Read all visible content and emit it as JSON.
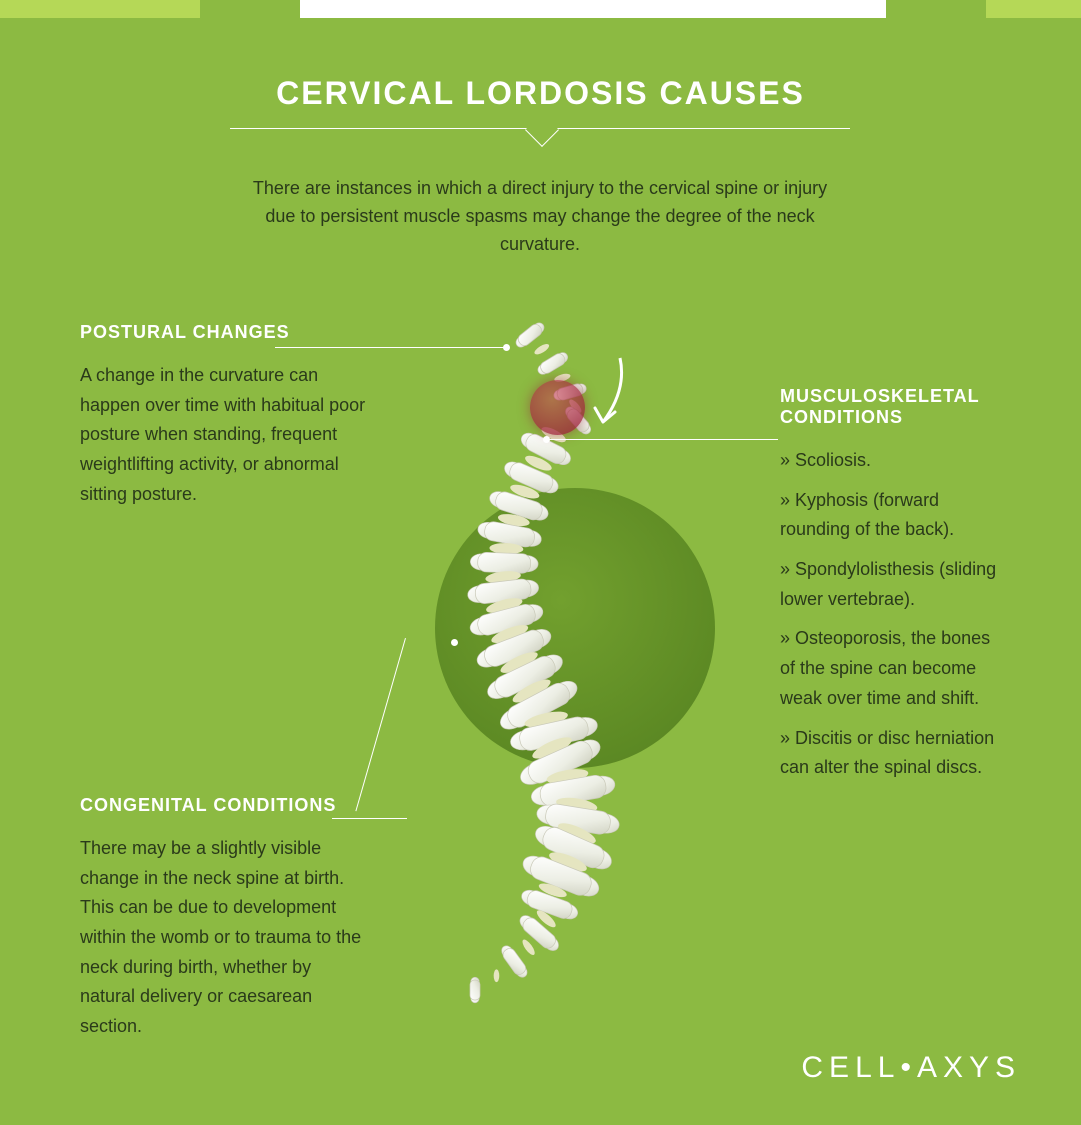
{
  "colors": {
    "background": "#8cba42",
    "accent_lime": "#b5d857",
    "white": "#ffffff",
    "text_dark": "#2a3a1a",
    "circle_dark": "#5d8a24",
    "highlight": "#a03048"
  },
  "title": "CERVICAL LORDOSIS CAUSES",
  "intro": "There are instances in which a direct injury to the cervical spine or injury due to persistent muscle spasms may change the degree of the neck curvature.",
  "sections": {
    "postural": {
      "heading": "POSTURAL CHANGES",
      "body": "A change in the curvature can happen over time with habitual poor posture when standing, frequent weightlifting activity, or abnormal sitting posture."
    },
    "congenital": {
      "heading": "CONGENITAL CONDITIONS",
      "body": "There may be a slightly visible change in the neck spine at birth. This can be due to development within the womb or to trauma to the neck during birth, whether by natural delivery or caesarean section."
    },
    "musculo": {
      "heading": "MUSCULOSKELETAL CONDITIONS",
      "items": [
        "Scoliosis.",
        "Kyphosis (forward rounding of the back).",
        "Spondylolisthesis (sliding lower vertebrae).",
        "Osteoporosis, the bones of the spine can become weak over time and shift.",
        "Discitis or disc herniation can alter the spinal discs."
      ]
    }
  },
  "logo": {
    "part1": "CELL",
    "dot": "•",
    "part2": "AXYS"
  },
  "illustration": {
    "type": "infographic",
    "vertebra_count": 24,
    "vertebra_fill": "#f2f2ee",
    "vertebra_stroke": "#c9c9b8",
    "disc_fill": "#e5e5c0",
    "highlight_color": "#a03048",
    "arrow_color": "#ffffff",
    "circle_color": "#5d8a24"
  }
}
